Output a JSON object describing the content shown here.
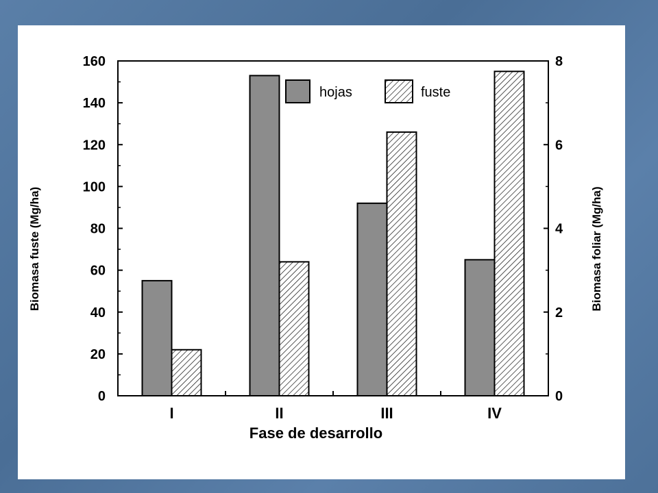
{
  "chart_data": {
    "type": "bar",
    "categories": [
      "I",
      "II",
      "III",
      "IV"
    ],
    "xlabel": "Fase de desarrollo",
    "ylabel_left": "Biomasa fuste (Mg/ha)",
    "ylabel_right": "Biomasa foliar (Mg/ha)",
    "ylim_left": [
      0,
      160
    ],
    "ylim_right": [
      0,
      8
    ],
    "yticks_left": [
      0,
      20,
      40,
      60,
      80,
      100,
      120,
      140,
      160
    ],
    "yticks_right": [
      0,
      2,
      4,
      6,
      8
    ],
    "grid": false,
    "legend_position": "top-center",
    "series": [
      {
        "name": "hojas",
        "axis": "right",
        "values": [
          2.75,
          7.65,
          4.6,
          3.25
        ],
        "fill": "#8c8c8c",
        "pattern": "solid"
      },
      {
        "name": "fuste",
        "axis": "left",
        "values": [
          22,
          64,
          126,
          155
        ],
        "fill": "#ffffff",
        "pattern": "diagonal-hatch"
      }
    ]
  },
  "colors": {
    "background": "#5477a0",
    "slide": "#ffffff",
    "bar_solid": "#8c8c8c",
    "ink": "#000000"
  }
}
